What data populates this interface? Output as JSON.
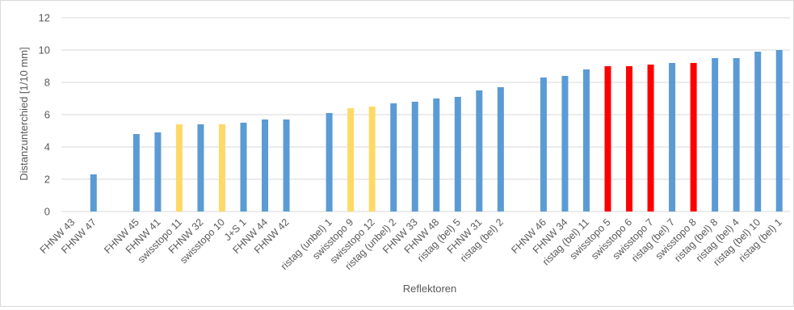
{
  "chart_data": {
    "type": "bar",
    "xlabel": "Reflektoren",
    "ylabel": "Distanzunterchied [1/10 mm]",
    "ylim": [
      0,
      12
    ],
    "yticks": [
      0,
      2,
      4,
      6,
      8,
      10,
      12
    ],
    "grid": true,
    "legend": "none",
    "colors": {
      "blue": "#5b9bd5",
      "yellow": "#ffd966",
      "red": "#ff0000",
      "grid": "#d9d9d9",
      "text": "#595959"
    },
    "categories": [
      "FHNW 43",
      "FHNW 47",
      "",
      "FHNW 45",
      "FHNW 41",
      "swisstopo 11",
      "FHNW 32",
      "swisstopo 10",
      "J+S 1",
      "FHNW 44",
      "FHNW 42",
      "",
      "ristag (unbel) 1",
      "swisstopo 9",
      "swisstopo 12",
      "ristag (unbel) 2",
      "FHNW 33",
      "FHNW 48",
      "ristag (bel) 5",
      "FHNW 31",
      "ristag (bel) 2",
      "",
      "FHNW 46",
      "FHNW 34",
      "ristag (bel) 11",
      "swisstopo 5",
      "swisstopo 6",
      "swisstopo 7",
      "ristag (bel) 7",
      "swisstopo 8",
      "ristag (bel) 8",
      "ristag (bel) 4",
      "ristag (bel) 10",
      "ristag (bel) 1"
    ],
    "values": [
      0.0,
      2.3,
      null,
      4.8,
      4.9,
      5.4,
      5.4,
      5.4,
      5.5,
      5.7,
      5.7,
      null,
      6.1,
      6.4,
      6.5,
      6.7,
      6.8,
      7.0,
      7.1,
      7.5,
      7.7,
      null,
      8.3,
      8.4,
      8.8,
      9.0,
      9.0,
      9.1,
      9.2,
      9.2,
      9.5,
      9.5,
      9.9,
      10.0
    ],
    "bar_colors": [
      "blue",
      "blue",
      null,
      "blue",
      "blue",
      "yellow",
      "blue",
      "yellow",
      "blue",
      "blue",
      "blue",
      null,
      "blue",
      "yellow",
      "yellow",
      "blue",
      "blue",
      "blue",
      "blue",
      "blue",
      "blue",
      null,
      "blue",
      "blue",
      "blue",
      "red",
      "red",
      "red",
      "blue",
      "red",
      "blue",
      "blue",
      "blue",
      "blue"
    ]
  }
}
